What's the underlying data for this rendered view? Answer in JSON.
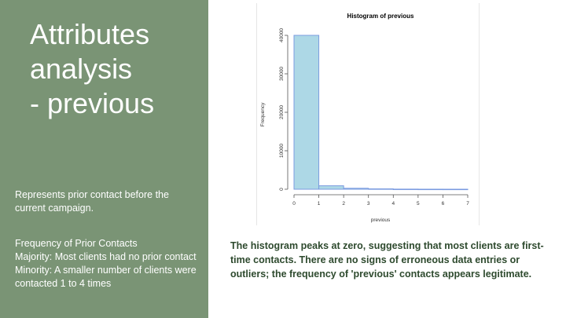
{
  "slide": {
    "title": "Attributes\nanalysis\n- previous",
    "description": "Represents prior contact before the current campaign.",
    "frequency_heading": "Frequency of Prior Contacts",
    "majority": "Majority: Most clients had no prior contact",
    "minority": "Minority: A smaller number of clients were contacted 1 to 4 times",
    "summary": "The histogram peaks at zero, suggesting that most clients are first-time contacts. There are no signs of erroneous data entries or outliers; the frequency of 'previous' contacts appears legitimate."
  },
  "colors": {
    "panel": "#7a9475",
    "bar_fill": "#add8e6",
    "bar_stroke": "#7b9be0",
    "summary_text": "#2e4a2e"
  },
  "chart_data": {
    "type": "bar",
    "title": "Histogram of previous",
    "xlabel": "previous",
    "ylabel": "Frequency",
    "bins": [
      [
        0,
        1
      ],
      [
        1,
        2
      ],
      [
        2,
        3
      ],
      [
        3,
        4
      ],
      [
        4,
        5
      ],
      [
        5,
        6
      ],
      [
        6,
        7
      ]
    ],
    "values": [
      40000,
      900,
      250,
      100,
      30,
      10,
      5
    ],
    "xlim": [
      0,
      7
    ],
    "ylim": [
      0,
      40000
    ],
    "xticks": [
      "0",
      "1",
      "2",
      "3",
      "4",
      "5",
      "6",
      "7"
    ],
    "yticks": [
      "0",
      "10000",
      "20000",
      "30000",
      "40000"
    ],
    "grid": false
  }
}
